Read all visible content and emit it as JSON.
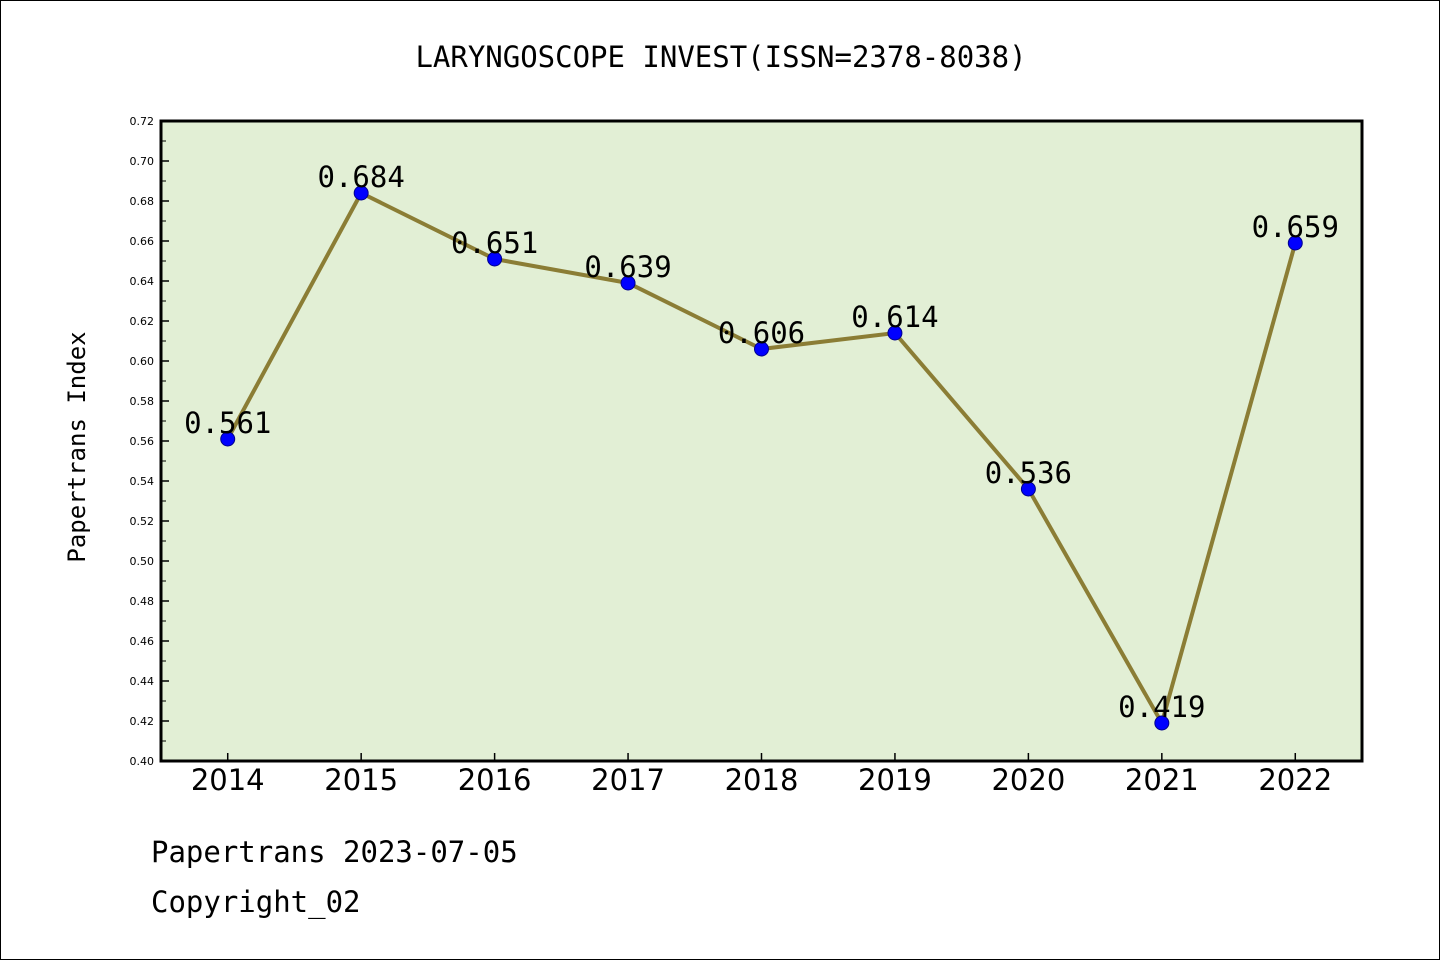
{
  "chart_data": {
    "type": "line",
    "title": "LARYNGOSCOPE INVEST(ISSN=2378-8038)",
    "ylabel": "Papertrans Index",
    "xlabel": "",
    "categories": [
      "2014",
      "2015",
      "2016",
      "2017",
      "2018",
      "2019",
      "2020",
      "2021",
      "2022"
    ],
    "series": [
      {
        "values": [
          0.561,
          0.684,
          0.651,
          0.639,
          0.606,
          0.614,
          0.536,
          0.419,
          0.659
        ],
        "data_labels": [
          "0.561",
          "0.684",
          "0.651",
          "0.639",
          "0.606",
          "0.614",
          "0.536",
          "0.419",
          "0.659"
        ]
      }
    ],
    "ylim": [
      0.4,
      0.72
    ],
    "yticks": [
      "0.40",
      "0.42",
      "0.44",
      "0.46",
      "0.48",
      "0.50",
      "0.52",
      "0.54",
      "0.56",
      "0.58",
      "0.60",
      "0.62",
      "0.64",
      "0.66",
      "0.68",
      "0.70",
      "0.72"
    ],
    "grid": false,
    "legend": "none",
    "colors": {
      "plot_background": "#e2efd5",
      "line": "#8b7d35",
      "marker": "#0000ff"
    }
  },
  "footer": {
    "date_line": "Papertrans 2023-07-05",
    "copyright_line": "Copyright_02"
  }
}
